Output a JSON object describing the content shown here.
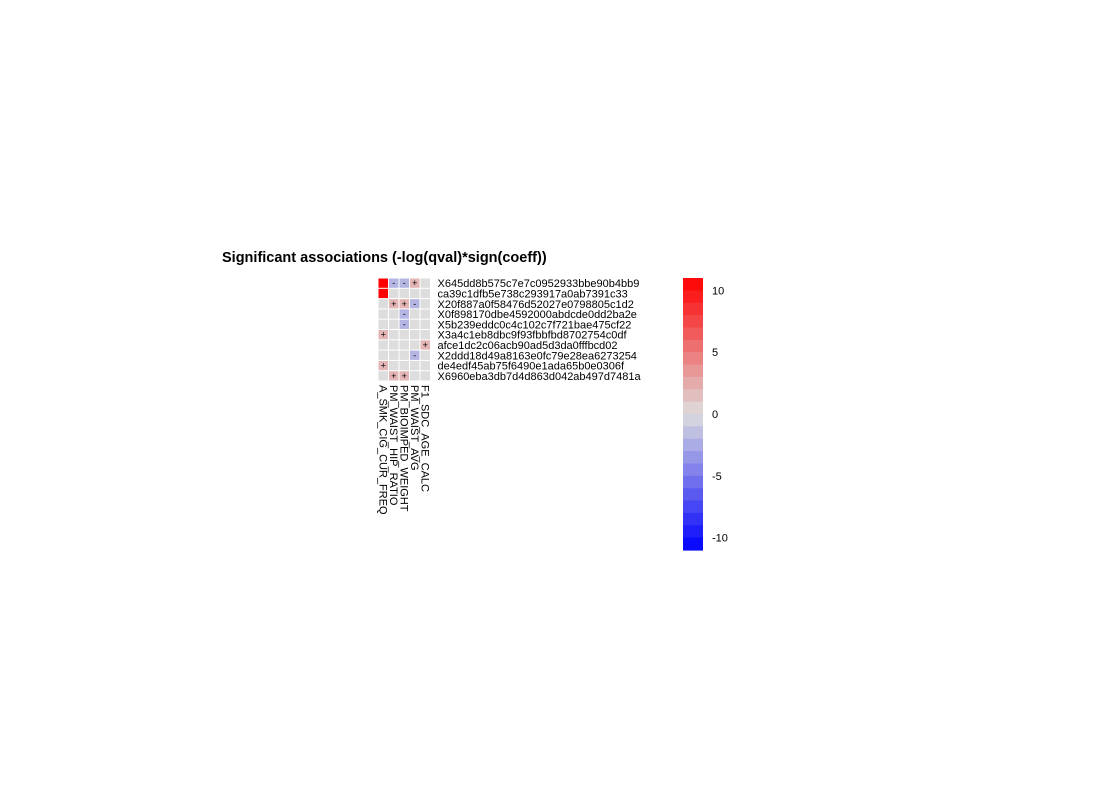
{
  "chart_data": {
    "type": "heatmap",
    "title": "Significant associations (-log(qval)*sign(coeff))",
    "columns": [
      "A_SMK_CIG_CUR_FREQ",
      "PM_WAIST_HIP_RATIO",
      "PM_BIOIMPED_WEIGHT",
      "PM_WAIST_AVG",
      "F1_SDC_AGE_CALC"
    ],
    "rows": [
      "X645dd8b575c7e7c0952933bbe90b4bb9",
      "ca39c1dfb5e738c293917a0ab7391c33",
      "X20f887a0f58476d52027e0798805c1d2",
      "X0f898170dbe4592000abdcde0dd2ba2e",
      "X5b239eddc0c4c102c7f721bae475cf22",
      "X3a4c1eb8dbc9f93fbbfbd8702754c0df",
      "afce1dc2c06acb90ad5d3da0fffbcd02",
      "X2ddd18d49a8163e0fc79e28ea6273254",
      "de4edf45ab75f6490e1ada65b0e0306f",
      "X6960eba3db7d4d863d042ab497d7481a"
    ],
    "values": [
      [
        11,
        -2,
        -2,
        2,
        0
      ],
      [
        11,
        0,
        0,
        0,
        0
      ],
      [
        0,
        2,
        2,
        -2,
        0
      ],
      [
        0,
        0,
        -2,
        0,
        0
      ],
      [
        0,
        0,
        -2,
        0,
        0
      ],
      [
        2,
        0,
        0,
        0,
        0
      ],
      [
        0,
        0,
        0,
        0,
        2
      ],
      [
        0,
        0,
        0,
        -2,
        0
      ],
      [
        2,
        0,
        0,
        0,
        0
      ],
      [
        0,
        2,
        2,
        0,
        0
      ]
    ],
    "marks": [
      [
        "",
        "-",
        "-",
        "+",
        ""
      ],
      [
        "",
        "",
        "",
        "",
        ""
      ],
      [
        "",
        "+",
        "+",
        "-",
        ""
      ],
      [
        "",
        "",
        "-",
        "",
        ""
      ],
      [
        "",
        "",
        "-",
        "",
        ""
      ],
      [
        "+",
        "",
        "",
        "",
        ""
      ],
      [
        "",
        "",
        "",
        "",
        "+"
      ],
      [
        "",
        "",
        "",
        "-",
        ""
      ],
      [
        "+",
        "",
        "",
        "",
        ""
      ],
      [
        "",
        "+",
        "+",
        "",
        ""
      ]
    ],
    "color_scale": {
      "low": "#0000ff",
      "mid": "#dddddd",
      "high": "#ff0000",
      "range": [
        -11,
        11
      ],
      "ticks": [
        10,
        5,
        0,
        -5,
        -10
      ]
    }
  }
}
